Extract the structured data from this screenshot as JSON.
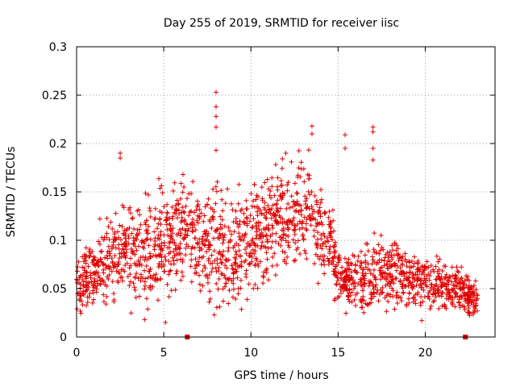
{
  "chart_data": {
    "type": "scatter",
    "title": "Day 255 of 2019, SRMTID for receiver iisc",
    "xlabel": "GPS time / hours",
    "ylabel": "SRMTID / TECUs",
    "xlim": [
      0,
      24
    ],
    "ylim": [
      0,
      0.3
    ],
    "x_ticks": [
      0,
      5,
      10,
      15,
      20
    ],
    "x_tick_labels": [
      "0",
      "5",
      "10",
      "15",
      "20"
    ],
    "y_ticks": [
      0,
      0.05,
      0.1,
      0.15,
      0.2,
      0.25,
      0.3
    ],
    "y_tick_labels": [
      "0",
      "0.05",
      "0.1",
      "0.15",
      "0.2",
      "0.25",
      "0.3"
    ],
    "grid": true,
    "marker": "+",
    "color": "#e00000",
    "envelope_hours": [
      0,
      1,
      2,
      3,
      4,
      5,
      6,
      7,
      8,
      9,
      10,
      11,
      12,
      13,
      14,
      14.6,
      15,
      16,
      17,
      18,
      19,
      20,
      21,
      22,
      23
    ],
    "envelope_median": [
      0.055,
      0.065,
      0.085,
      0.09,
      0.085,
      0.095,
      0.11,
      0.1,
      0.1,
      0.09,
      0.1,
      0.115,
      0.125,
      0.135,
      0.11,
      0.1,
      0.06,
      0.055,
      0.06,
      0.07,
      0.06,
      0.06,
      0.055,
      0.05,
      0.035
    ],
    "envelope_spread": [
      0.02,
      0.025,
      0.03,
      0.035,
      0.035,
      0.04,
      0.035,
      0.035,
      0.04,
      0.035,
      0.035,
      0.035,
      0.04,
      0.04,
      0.035,
      0.03,
      0.02,
      0.02,
      0.025,
      0.025,
      0.02,
      0.02,
      0.02,
      0.015,
      0.012
    ],
    "points_per_hour": 85,
    "spikes": [
      {
        "x": 2.5,
        "y": 0.19
      },
      {
        "x": 2.5,
        "y": 0.185
      },
      {
        "x": 8.0,
        "y": 0.253
      },
      {
        "x": 8.0,
        "y": 0.238
      },
      {
        "x": 8.0,
        "y": 0.228
      },
      {
        "x": 8.0,
        "y": 0.217
      },
      {
        "x": 8.0,
        "y": 0.193
      },
      {
        "x": 12.0,
        "y": 0.19
      },
      {
        "x": 13.5,
        "y": 0.218
      },
      {
        "x": 13.5,
        "y": 0.21
      },
      {
        "x": 15.4,
        "y": 0.209
      },
      {
        "x": 15.4,
        "y": 0.195
      },
      {
        "x": 17.0,
        "y": 0.217
      },
      {
        "x": 17.0,
        "y": 0.212
      },
      {
        "x": 17.0,
        "y": 0.195
      },
      {
        "x": 17.0,
        "y": 0.183
      },
      {
        "x": 5.1,
        "y": 0.015
      },
      {
        "x": 3.9,
        "y": 0.018
      },
      {
        "x": 19.8,
        "y": 0.017
      }
    ],
    "zero_markers": [
      {
        "x": 6.35,
        "y": 0
      },
      {
        "x": 22.3,
        "y": 0
      }
    ]
  }
}
